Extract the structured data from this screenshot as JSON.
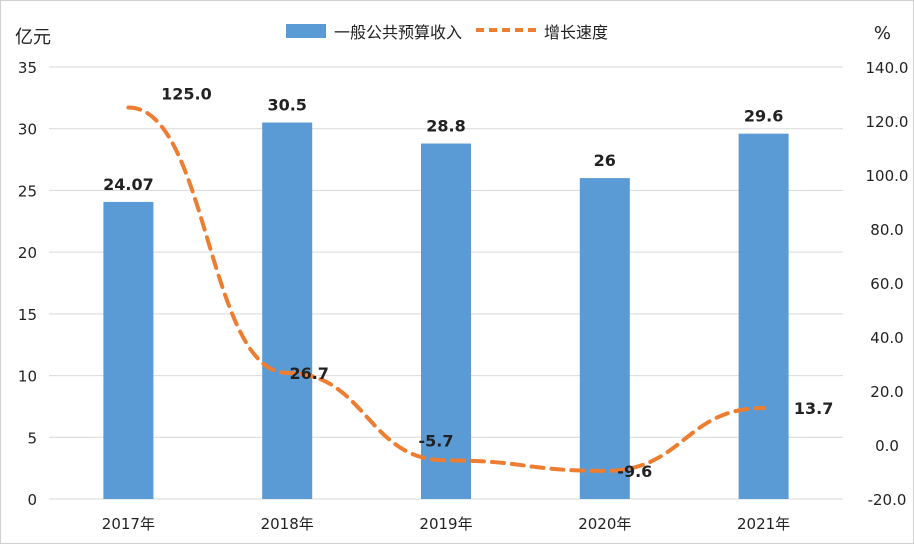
{
  "legend": {
    "bar_label": "一般公共预算收入",
    "line_label": "增长速度"
  },
  "axes": {
    "left_title": "亿元",
    "right_title": "%"
  },
  "colors": {
    "bar": "#5b9bd5",
    "line": "#ed7d31",
    "grid": "#d9d9d9",
    "text": "#222222"
  },
  "chart_data": {
    "type": "bar",
    "categories": [
      "2017年",
      "2018年",
      "2019年",
      "2020年",
      "2021年"
    ],
    "series": [
      {
        "name": "一般公共预算收入",
        "type": "bar",
        "axis": "left",
        "values": [
          24.07,
          30.5,
          28.8,
          26,
          29.6
        ],
        "labels": [
          "24.07",
          "30.5",
          "28.8",
          "26",
          "29.6"
        ]
      },
      {
        "name": "增长速度",
        "type": "line",
        "style": "dashed",
        "axis": "right",
        "values": [
          125.0,
          26.7,
          -5.7,
          -9.6,
          13.7
        ],
        "labels": [
          "125.0",
          "26.7",
          "-5.7",
          "-9.6",
          "13.7"
        ]
      }
    ],
    "ylabel": "亿元",
    "y2label": "%",
    "ylim": [
      0,
      35
    ],
    "y2lim": [
      -20,
      140
    ],
    "yticks": [
      "0",
      "5",
      "10",
      "15",
      "20",
      "25",
      "30",
      "35"
    ],
    "y2ticks": [
      "-20.0",
      "0.0",
      "20.0",
      "40.0",
      "60.0",
      "80.0",
      "100.0",
      "120.0",
      "140.0"
    ],
    "grid": true,
    "legend_position": "top-center"
  }
}
